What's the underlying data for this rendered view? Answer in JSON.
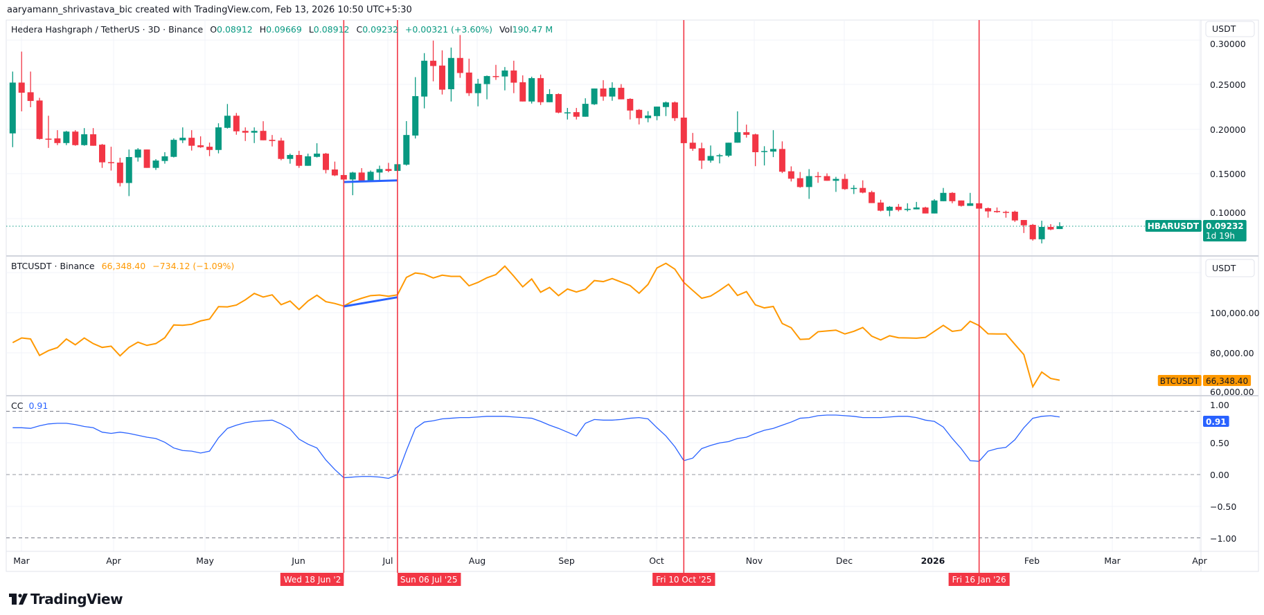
{
  "attribution": "aaryamann_shrivastava_bic created with TradingView.com, Feb 13, 2026 10:50 UTC+5:30",
  "colors": {
    "up": "#089981",
    "down": "#f23645",
    "btc": "#ff9800",
    "cc": "#2962ff",
    "marker": "#f23645",
    "trendline": "#2962ff"
  },
  "main_pane": {
    "symbol_desc": "Hedera Hashgraph / TetherUS · 3D · Binance",
    "o_label": "O",
    "o_value": "0.08912",
    "h_label": "H",
    "h_value": "0.09669",
    "l_label": "L",
    "l_value": "0.08912",
    "c_label": "C",
    "c_value": "0.09232",
    "change": "+0.00321 (+3.60%)",
    "vol_label": "Vol",
    "vol_value": "190.47 M",
    "currency_button": "USDT",
    "axis_labels": [
      "0.30000",
      "0.25000",
      "0.20000",
      "0.15000",
      "0.10000"
    ],
    "price_tag_symbol": "HBARUSDT",
    "price_tag_value": "0.09232",
    "price_tag_countdown": "1d 19h"
  },
  "btc_pane": {
    "symbol_desc": "BTCUSDT · Binance",
    "last": "66,348.40",
    "change": "−734.12 (−1.09%)",
    "currency_button": "USDT",
    "axis_labels": [
      "100,000.00",
      "80,000.00",
      "60,000.00"
    ],
    "price_tag_symbol": "BTCUSDT",
    "price_tag_value": "66,348.40"
  },
  "cc_pane": {
    "name": "CC",
    "value": "0.91",
    "axis_labels": [
      "1.00",
      "0.50",
      "0.00",
      "−0.50",
      "−1.00"
    ],
    "tag_value": "0.91"
  },
  "time_axis": {
    "labels": [
      "Mar",
      "Apr",
      "May",
      "Jun",
      "Jul",
      "Aug",
      "Sep",
      "Oct",
      "Nov",
      "Dec",
      "2026",
      "Feb",
      "Mar",
      "Apr"
    ],
    "markers": [
      "Wed 18 Jun '2",
      "Sun 06 Jul '25",
      "Fri 10 Oct '25",
      "Fri 16 Jan '26"
    ]
  },
  "branding": {
    "logo_text": "TradingView"
  },
  "chart_data": [
    {
      "type": "candlestick",
      "ylim": [
        0.07,
        0.31
      ],
      "fields": [
        "open",
        "high",
        "low",
        "close"
      ],
      "candles": [
        [
          0.1959,
          0.2649,
          0.1805,
          0.2526
        ],
        [
          0.2526,
          0.2872,
          0.2205,
          0.2413
        ],
        [
          0.2418,
          0.2649,
          0.2251,
          0.2321
        ],
        [
          0.2326,
          0.2356,
          0.189,
          0.1897
        ],
        [
          0.19,
          0.2156,
          0.1797,
          0.1899
        ],
        [
          0.1903,
          0.1995,
          0.1828,
          0.1851
        ],
        [
          0.1851,
          0.1987,
          0.1828,
          0.1979
        ],
        [
          0.1979,
          0.1995,
          0.1821,
          0.1828
        ],
        [
          0.1828,
          0.2018,
          0.1821,
          0.1949
        ],
        [
          0.1949,
          0.2018,
          0.1821,
          0.1821
        ],
        [
          0.1833,
          0.1841,
          0.1574,
          0.1636
        ],
        [
          0.1638,
          0.181,
          0.1544,
          0.1636
        ],
        [
          0.1633,
          0.1687,
          0.1367,
          0.1405
        ],
        [
          0.1405,
          0.1779,
          0.1259,
          0.1695
        ],
        [
          0.169,
          0.1795,
          0.1644,
          0.1779
        ],
        [
          0.1779,
          0.1779,
          0.1574,
          0.1574
        ],
        [
          0.1574,
          0.1672,
          0.1551,
          0.1656
        ],
        [
          0.1651,
          0.1749,
          0.1621,
          0.1703
        ],
        [
          0.1697,
          0.1903,
          0.169,
          0.1887
        ],
        [
          0.1882,
          0.2026,
          0.1851,
          0.191
        ],
        [
          0.191,
          0.1995,
          0.1767,
          0.1821
        ],
        [
          0.1826,
          0.1926,
          0.1797,
          0.1805
        ],
        [
          0.181,
          0.1856,
          0.1705,
          0.1774
        ],
        [
          0.1774,
          0.2072,
          0.1736,
          0.2026
        ],
        [
          0.2021,
          0.2287,
          0.2013,
          0.2156
        ],
        [
          0.2156,
          0.2187,
          0.1944,
          0.1982
        ],
        [
          0.1987,
          0.2026,
          0.1874,
          0.1967
        ],
        [
          0.1967,
          0.2026,
          0.1851,
          0.1987
        ],
        [
          0.1987,
          0.2095,
          0.1882,
          0.1882
        ],
        [
          0.1887,
          0.1941,
          0.1813,
          0.1874
        ],
        [
          0.1879,
          0.191,
          0.1659,
          0.1674
        ],
        [
          0.1674,
          0.1733,
          0.1621,
          0.1718
        ],
        [
          0.1718,
          0.1764,
          0.1574,
          0.1597
        ],
        [
          0.1597,
          0.1733,
          0.1597,
          0.1703
        ],
        [
          0.1697,
          0.1849,
          0.169,
          0.1733
        ],
        [
          0.1733,
          0.1741,
          0.1513,
          0.1551
        ],
        [
          0.1556,
          0.1644,
          0.1482,
          0.149
        ],
        [
          0.1494,
          0.1499,
          0.1437,
          0.1444
        ],
        [
          0.1444,
          0.153,
          0.1269,
          0.1522
        ],
        [
          0.1522,
          0.1571,
          0.1424,
          0.1429
        ],
        [
          0.1429,
          0.1545,
          0.1424,
          0.153
        ],
        [
          0.1522,
          0.1599,
          0.1437,
          0.1561
        ],
        [
          0.1561,
          0.163,
          0.1525,
          0.154
        ],
        [
          0.154,
          0.1615,
          0.154,
          0.1615
        ],
        [
          0.161,
          0.2096,
          0.1599,
          0.1941
        ],
        [
          0.1935,
          0.2587,
          0.1902,
          0.2375
        ],
        [
          0.237,
          0.2855,
          0.2238,
          0.277
        ],
        [
          0.277,
          0.2995,
          0.254,
          0.2711
        ],
        [
          0.2716,
          0.2886,
          0.2393,
          0.2447
        ],
        [
          0.2452,
          0.2917,
          0.2315,
          0.2801
        ],
        [
          0.2801,
          0.3057,
          0.2579,
          0.2633
        ],
        [
          0.2638,
          0.2793,
          0.2377,
          0.2408
        ],
        [
          0.2408,
          0.2568,
          0.2261,
          0.2514
        ],
        [
          0.2509,
          0.2605,
          0.2339,
          0.2599
        ],
        [
          0.2599,
          0.2724,
          0.2556,
          0.2594
        ],
        [
          0.2594,
          0.27,
          0.2439,
          0.2661
        ],
        [
          0.2661,
          0.277,
          0.2408,
          0.2525
        ],
        [
          0.253,
          0.2607,
          0.2315,
          0.2315
        ],
        [
          0.2315,
          0.2592,
          0.2292,
          0.2576
        ],
        [
          0.2576,
          0.2615,
          0.2276,
          0.2307
        ],
        [
          0.2307,
          0.2452,
          0.2307,
          0.2398
        ],
        [
          0.2398,
          0.2406,
          0.2183,
          0.2191
        ],
        [
          0.2191,
          0.2243,
          0.2114,
          0.2194
        ],
        [
          0.2196,
          0.2243,
          0.2114,
          0.2145
        ],
        [
          0.2145,
          0.2351,
          0.2145,
          0.2289
        ],
        [
          0.2284,
          0.246,
          0.2276,
          0.246
        ],
        [
          0.246,
          0.2553,
          0.2323,
          0.237
        ],
        [
          0.237,
          0.253,
          0.2323,
          0.2468
        ],
        [
          0.2468,
          0.2509,
          0.2339,
          0.2339
        ],
        [
          0.2344,
          0.2351,
          0.2114,
          0.2214
        ],
        [
          0.2222,
          0.223,
          0.2059,
          0.2129
        ],
        [
          0.2129,
          0.2207,
          0.2083,
          0.2158
        ],
        [
          0.2152,
          0.2258,
          0.2106,
          0.2258
        ],
        [
          0.2253,
          0.2315,
          0.2152,
          0.2305
        ],
        [
          0.2305,
          0.2315,
          0.2098,
          0.2129
        ],
        [
          0.2135,
          0.2135,
          0.185,
          0.185
        ],
        [
          0.1855,
          0.1964,
          0.1764,
          0.1788
        ],
        [
          0.1793,
          0.1855,
          0.1562,
          0.1655
        ],
        [
          0.1655,
          0.1824,
          0.1632,
          0.1707
        ],
        [
          0.171,
          0.1731,
          0.1624,
          0.1715
        ],
        [
          0.171,
          0.1855,
          0.1694,
          0.1855
        ],
        [
          0.1855,
          0.2205,
          0.1855,
          0.1972
        ],
        [
          0.1972,
          0.2057,
          0.1912,
          0.1943
        ],
        [
          0.1948,
          0.1956,
          0.1593,
          0.1749
        ],
        [
          0.1756,
          0.1816,
          0.1601,
          0.1762
        ],
        [
          0.1756,
          0.1995,
          0.1694,
          0.1785
        ],
        [
          0.1785,
          0.187,
          0.1516,
          0.1531
        ],
        [
          0.1536,
          0.1591,
          0.1422,
          0.1453
        ],
        [
          0.1459,
          0.1528,
          0.1352,
          0.136
        ],
        [
          0.136,
          0.156,
          0.1228,
          0.1482
        ],
        [
          0.1482,
          0.1528,
          0.1407,
          0.1477
        ],
        [
          0.1482,
          0.1513,
          0.143,
          0.143
        ],
        [
          0.143,
          0.1474,
          0.1306,
          0.1451
        ],
        [
          0.1451,
          0.1505,
          0.1329,
          0.1337
        ],
        [
          0.1347,
          0.1381,
          0.1282,
          0.135
        ],
        [
          0.135,
          0.1435,
          0.129,
          0.1298
        ],
        [
          0.1303,
          0.1319,
          0.1181,
          0.1181
        ],
        [
          0.1187,
          0.1218,
          0.1088,
          0.1096
        ],
        [
          0.1096,
          0.1148,
          0.1034,
          0.114
        ],
        [
          0.114,
          0.1171,
          0.1088,
          0.1104
        ],
        [
          0.1104,
          0.1179,
          0.1088,
          0.1117
        ],
        [
          0.1111,
          0.1194,
          0.1111,
          0.1132
        ],
        [
          0.1132,
          0.114,
          0.1065,
          0.1065
        ],
        [
          0.1065,
          0.1225,
          0.1065,
          0.121
        ],
        [
          0.1202,
          0.135,
          0.1202,
          0.1295
        ],
        [
          0.1295,
          0.1303,
          0.1179,
          0.1202
        ],
        [
          0.121,
          0.121,
          0.1142,
          0.115
        ],
        [
          0.115,
          0.1295,
          0.115,
          0.1179
        ],
        [
          0.1179,
          0.1179,
          0.1119,
          0.1119
        ],
        [
          0.1124,
          0.1132,
          0.1018,
          0.1088
        ],
        [
          0.1093,
          0.1132,
          0.1073,
          0.108
        ],
        [
          0.1083,
          0.1096,
          0.1018,
          0.108
        ],
        [
          0.1085,
          0.1096,
          0.0971,
          0.0987
        ],
        [
          0.0992,
          0.0992,
          0.0847,
          0.0933
        ],
        [
          0.0938,
          0.0948,
          0.0762,
          0.0777
        ],
        [
          0.0777,
          0.0984,
          0.0731,
          0.0915
        ],
        [
          0.0915,
          0.0946,
          0.0878,
          0.0886
        ],
        [
          0.08912,
          0.09669,
          0.08912,
          0.09232
        ]
      ],
      "last_price": 0.09232,
      "trendline": {
        "from_bar": 38,
        "to_bar": 44,
        "values": [
          0.1416,
          0.1434
        ]
      }
    },
    {
      "type": "line",
      "ylim": [
        58000,
        127000
      ],
      "values": [
        85100,
        87400,
        86900,
        78700,
        81100,
        82600,
        86900,
        84000,
        87400,
        84600,
        82700,
        83300,
        78500,
        82700,
        85300,
        83700,
        84600,
        87500,
        93900,
        93700,
        94200,
        95900,
        96800,
        103000,
        102900,
        103800,
        106400,
        109600,
        107800,
        108900,
        104000,
        105800,
        101600,
        105800,
        108700,
        105500,
        104600,
        103300,
        105700,
        107200,
        108500,
        108800,
        108200,
        108900,
        117600,
        119800,
        119200,
        117300,
        118700,
        118100,
        118100,
        113400,
        115100,
        117400,
        119000,
        123200,
        118200,
        112900,
        116800,
        110200,
        112600,
        108500,
        111800,
        110300,
        111700,
        116000,
        115500,
        117000,
        115300,
        113500,
        109700,
        114100,
        122300,
        124600,
        121700,
        115100,
        111100,
        107200,
        108300,
        111100,
        114200,
        108600,
        110500,
        103900,
        102400,
        103100,
        94600,
        92500,
        86700,
        86900,
        90500,
        90900,
        91300,
        89400,
        90700,
        92600,
        88300,
        86400,
        88500,
        87500,
        87400,
        87300,
        87700,
        90700,
        93700,
        90700,
        91300,
        95700,
        93600,
        89500,
        89400,
        89400,
        84200,
        79100,
        63100,
        70400,
        67200,
        66348.4
      ],
      "trendline": {
        "from_bar": 38,
        "to_bar": 44,
        "values": [
          103100,
          107700
        ]
      }
    },
    {
      "type": "line",
      "ylim": [
        -1.2,
        1.2
      ],
      "reference_lines": [
        1.0,
        0.0,
        -1.0
      ],
      "values": [
        0.74,
        0.74,
        0.73,
        0.77,
        0.8,
        0.81,
        0.81,
        0.79,
        0.76,
        0.74,
        0.67,
        0.65,
        0.67,
        0.65,
        0.62,
        0.59,
        0.57,
        0.51,
        0.42,
        0.38,
        0.37,
        0.34,
        0.37,
        0.58,
        0.73,
        0.78,
        0.82,
        0.84,
        0.85,
        0.86,
        0.8,
        0.72,
        0.56,
        0.48,
        0.42,
        0.23,
        0.08,
        -0.05,
        -0.04,
        -0.03,
        -0.03,
        -0.04,
        -0.06,
        0.0,
        0.38,
        0.73,
        0.83,
        0.85,
        0.88,
        0.89,
        0.9,
        0.9,
        0.91,
        0.92,
        0.92,
        0.92,
        0.91,
        0.9,
        0.89,
        0.84,
        0.78,
        0.73,
        0.67,
        0.61,
        0.81,
        0.87,
        0.86,
        0.86,
        0.87,
        0.89,
        0.9,
        0.88,
        0.74,
        0.61,
        0.44,
        0.22,
        0.26,
        0.41,
        0.46,
        0.5,
        0.52,
        0.57,
        0.59,
        0.65,
        0.7,
        0.73,
        0.78,
        0.83,
        0.89,
        0.9,
        0.93,
        0.94,
        0.94,
        0.93,
        0.92,
        0.9,
        0.9,
        0.9,
        0.91,
        0.92,
        0.92,
        0.9,
        0.86,
        0.84,
        0.75,
        0.57,
        0.41,
        0.22,
        0.21,
        0.37,
        0.41,
        0.43,
        0.55,
        0.74,
        0.89,
        0.92,
        0.93,
        0.91
      ]
    }
  ],
  "vertical_markers_bars": [
    38,
    44,
    76,
    109
  ]
}
